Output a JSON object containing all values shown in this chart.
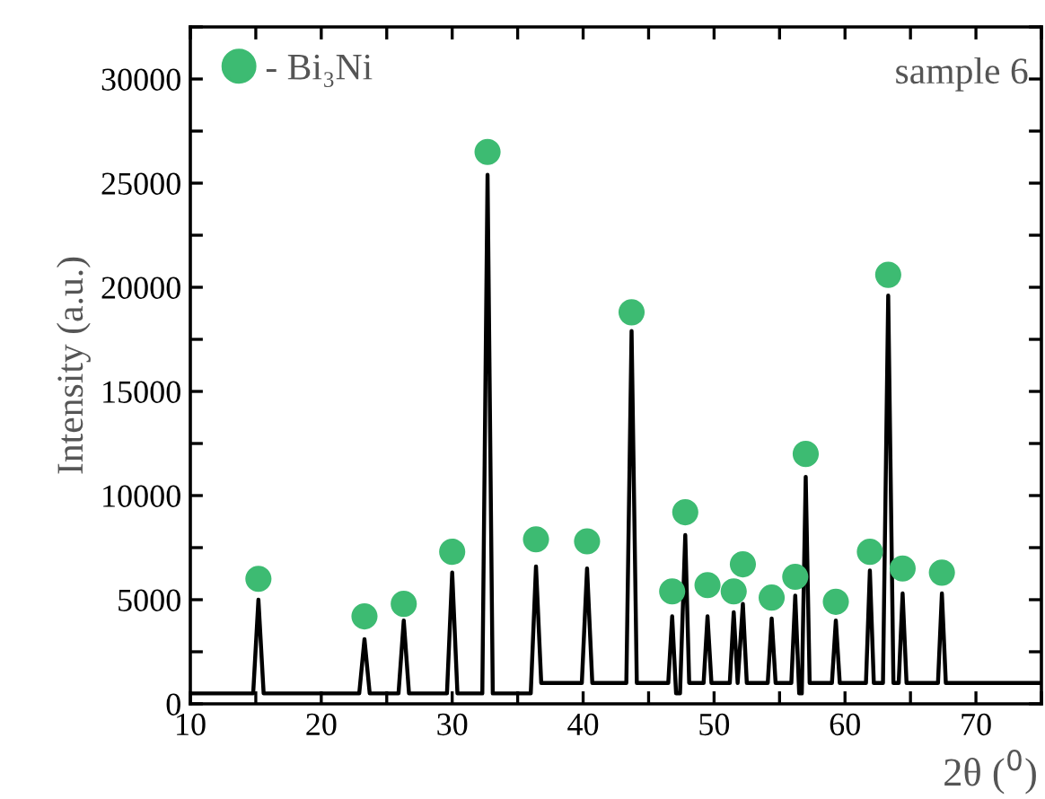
{
  "chart_data": {
    "type": "line",
    "xlabel": "2θ ($^{0}$)",
    "ylabel": "Intensity (a.u.)",
    "annotations": [
      "sample 6"
    ],
    "xlim": [
      10,
      75
    ],
    "ylim": [
      0,
      32500
    ],
    "xticks": [
      10,
      {
        "value": 15,
        "label": null
      },
      20,
      {
        "value": 25,
        "label": null
      },
      30,
      {
        "value": 35,
        "label": null
      },
      40,
      {
        "value": 45,
        "label": null
      },
      50,
      {
        "value": 55,
        "label": null
      },
      60,
      {
        "value": 65,
        "label": null
      },
      70,
      {
        "value": 75,
        "label": null
      }
    ],
    "yticks": [
      0,
      {
        "value": 2500,
        "label": null
      },
      5000,
      {
        "value": 7500,
        "label": null
      },
      10000,
      {
        "value": 12500,
        "label": null
      },
      15000,
      {
        "value": 17500,
        "label": null
      },
      20000,
      {
        "value": 22500,
        "label": null
      },
      25000,
      {
        "value": 27500,
        "label": null
      },
      30000,
      {
        "value": 32500,
        "label": null
      }
    ],
    "grid": false,
    "legend": "top left",
    "series": [
      {
        "color": "#000000",
        "line_style": "solid",
        "marker": "none",
        "x": [
          10,
          14.8,
          15.2,
          15.6,
          22.9,
          23.3,
          23.7,
          25.9,
          26.3,
          26.7,
          29.6,
          30.0,
          30.4,
          32.3,
          32.7,
          33.1,
          36.0,
          36.4,
          36.8,
          39.9,
          40.3,
          40.7,
          43.3,
          43.7,
          44.1,
          46.5,
          46.8,
          47.1,
          47.4,
          47.8,
          48.1,
          49.2,
          49.5,
          49.8,
          51.2,
          51.5,
          51.8,
          52.2,
          52.5,
          54.1,
          54.4,
          54.7,
          55.9,
          56.2,
          56.5,
          56.7,
          57.0,
          57.3,
          59.0,
          59.3,
          59.6,
          61.6,
          61.9,
          62.2,
          62.9,
          63.3,
          63.7,
          64.1,
          64.4,
          64.7,
          67.1,
          67.4,
          67.7,
          75
        ],
        "values": [
          500,
          500,
          5000,
          500,
          500,
          3100,
          500,
          500,
          4000,
          500,
          500,
          6300,
          500,
          500,
          25400,
          500,
          500,
          6600,
          1000,
          1000,
          6500,
          1000,
          1000,
          17900,
          1000,
          1000,
          4200,
          500,
          500,
          8100,
          1000,
          1000,
          4200,
          1000,
          1000,
          4400,
          1000,
          4800,
          1000,
          1000,
          4100,
          1000,
          1000,
          5200,
          500,
          500,
          10900,
          1000,
          1000,
          4000,
          1000,
          1000,
          6400,
          1000,
          1000,
          19600,
          1000,
          1000,
          5300,
          1000,
          1000,
          5300,
          1000,
          1000
        ]
      },
      {
        "type": "scatter",
        "name": "- Bi₃Ni",
        "color": "#3dbb72",
        "marker": "circle",
        "x": [
          15.2,
          23.3,
          26.3,
          30.0,
          32.7,
          36.4,
          40.3,
          43.7,
          46.8,
          47.8,
          49.5,
          51.5,
          52.2,
          54.4,
          56.2,
          57.0,
          59.3,
          61.9,
          63.3,
          64.4,
          67.4
        ],
        "values": [
          6000,
          4200,
          4800,
          7300,
          26500,
          7900,
          7800,
          18800,
          5400,
          9200,
          5700,
          5400,
          6700,
          5100,
          6100,
          12000,
          4900,
          7300,
          20600,
          6500,
          6300
        ]
      }
    ]
  }
}
